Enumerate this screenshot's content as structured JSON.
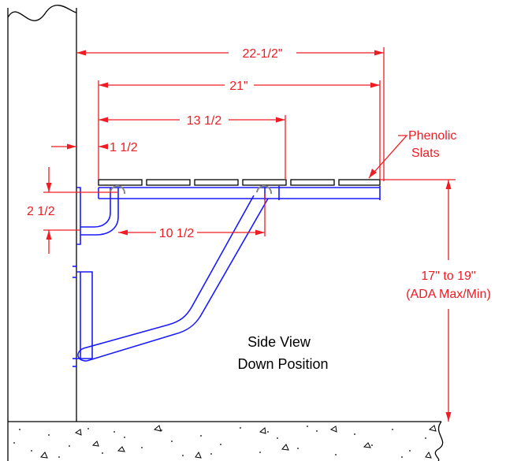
{
  "dimensions": {
    "overall_depth": "22-1/2\"",
    "seat_depth": "21\"",
    "bracket_span": "13 1/2",
    "wall_offset": "1 1/2",
    "pivot_spacing": "10 1/2",
    "mount_drop": "2 1/2",
    "seat_height_line1": "17\" to 19\"",
    "seat_height_line2": "(ADA Max/Min)"
  },
  "labels": {
    "slats_line1": "Phenolic",
    "slats_line2": "Slats",
    "view_line1": "Side View",
    "view_line2": "Down Position"
  },
  "colors": {
    "dimension": "#ee1c24",
    "bracket": "#1a1aff",
    "outline": "#000000"
  }
}
